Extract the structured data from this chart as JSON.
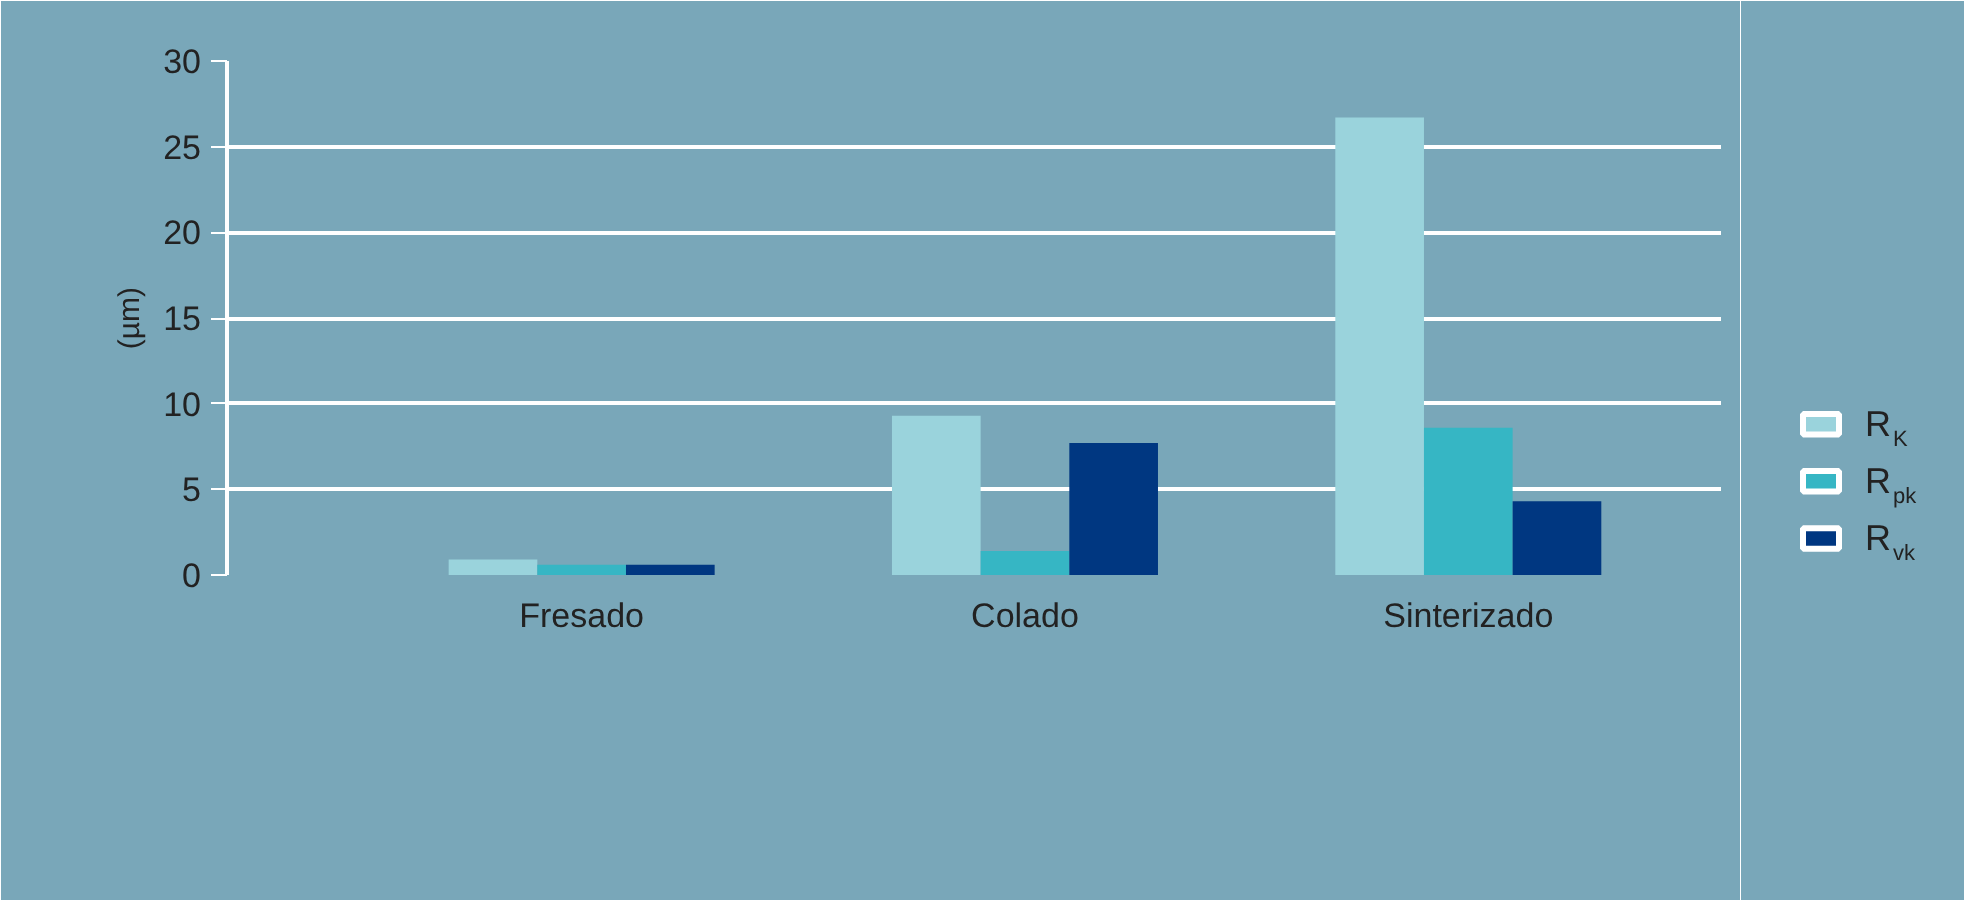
{
  "chart_data": {
    "type": "bar",
    "ylabel": "(µm)",
    "categories": [
      "Fresado",
      "Colado",
      "Sinterizado"
    ],
    "series": [
      {
        "name": "R$_{K}$",
        "color": "#9ad3dc",
        "values": [
          0.9,
          9.3,
          26.7
        ]
      },
      {
        "name": "R$_{pk}$",
        "color": "#36b6c4",
        "values": [
          0.6,
          1.4,
          8.6
        ]
      },
      {
        "name": "R$_{vk}$",
        "color": "#003781",
        "values": [
          0.6,
          7.7,
          4.3
        ]
      }
    ],
    "ylim": [
      0,
      30
    ],
    "yticks": [
      0,
      5,
      10,
      15,
      20,
      25,
      30
    ],
    "grid": "y",
    "legend": "bottom right"
  }
}
